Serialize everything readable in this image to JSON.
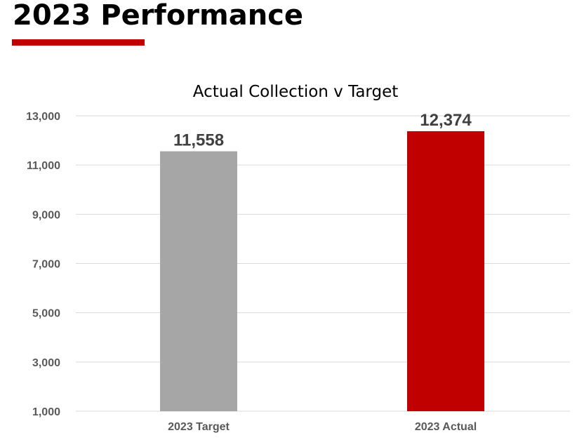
{
  "page": {
    "title": "2023 Performance"
  },
  "colors": {
    "accent": "#c00000",
    "target_bar": "#a6a6a6",
    "actual_bar": "#c00000",
    "gridline": "#d9d9d9",
    "tick_text": "#595959",
    "data_label": "#404040"
  },
  "chart_data": {
    "type": "bar",
    "title": "Actual Collection v Target",
    "xlabel": "",
    "ylabel": "",
    "categories": [
      "2023 Target",
      "2023 Actual"
    ],
    "values": [
      11558,
      12374
    ],
    "value_labels": [
      "11,558",
      "12,374"
    ],
    "ylim": [
      1000,
      13000
    ],
    "yticks": [
      1000,
      3000,
      5000,
      7000,
      9000,
      11000,
      13000
    ],
    "ytick_labels": [
      "1,000",
      "3,000",
      "5,000",
      "7,000",
      "9,000",
      "11,000",
      "13,000"
    ],
    "grid": true,
    "legend": "none"
  }
}
